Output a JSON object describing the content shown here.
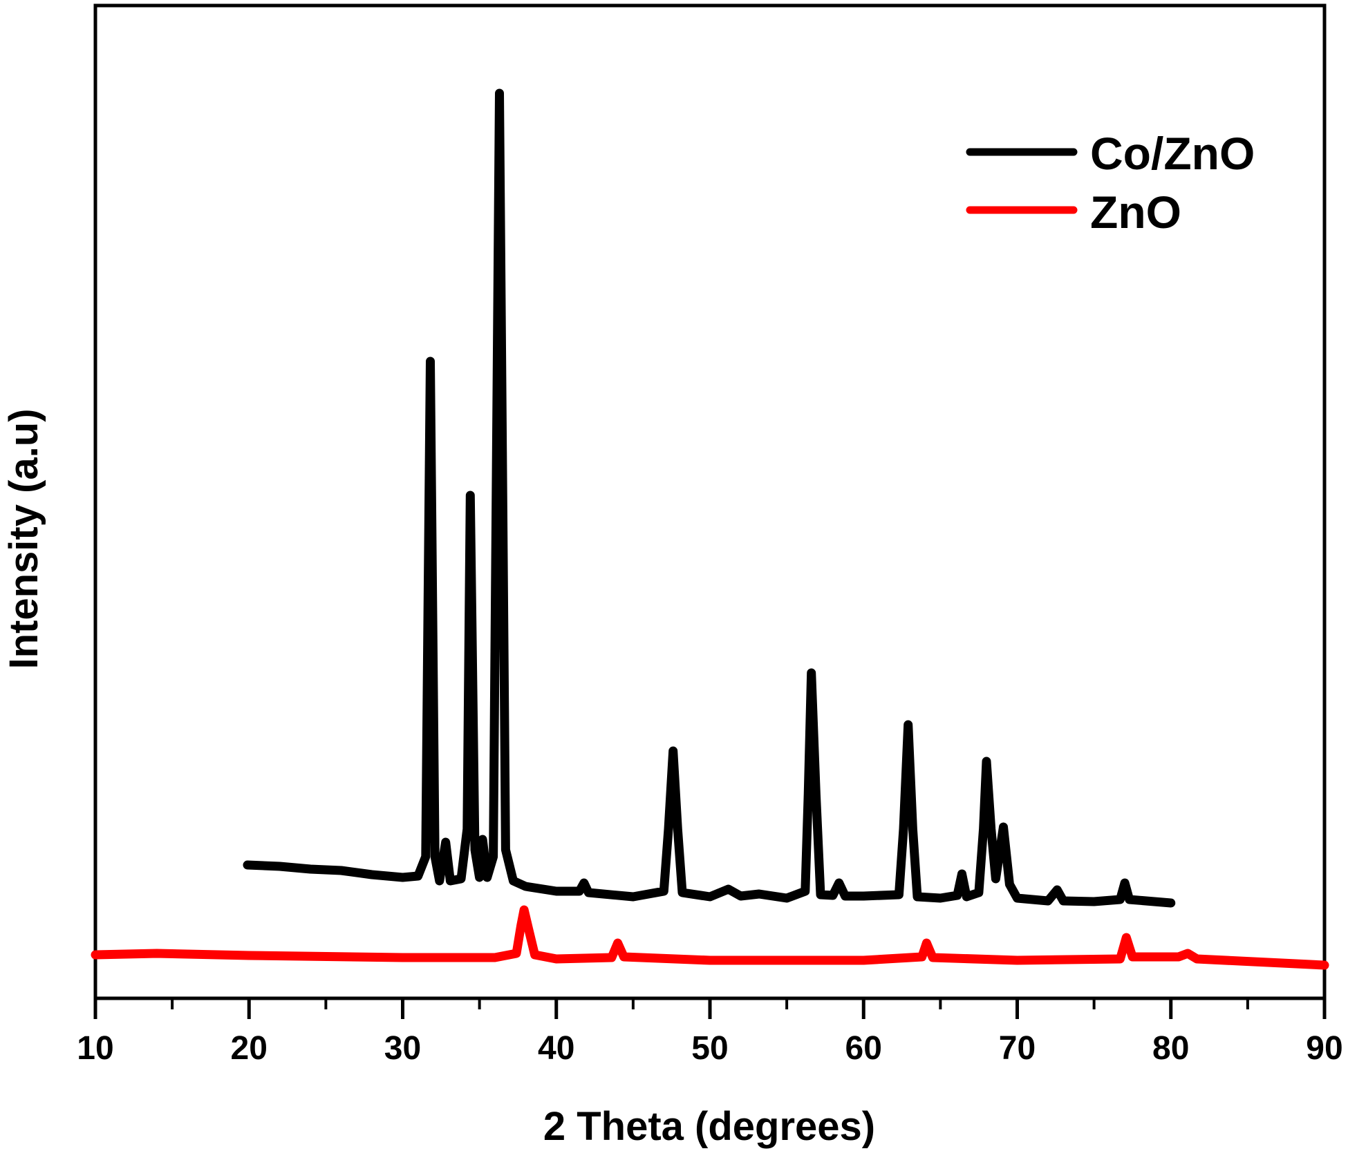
{
  "chart_data": {
    "type": "line",
    "title": "",
    "xlabel": "2 Theta (degrees)",
    "ylabel": "Intensity (a.u)",
    "xlim": [
      10,
      90
    ],
    "ylim": [
      0,
      1437
    ],
    "x_ticks_major": [
      10,
      20,
      30,
      40,
      50,
      60,
      70,
      80,
      90
    ],
    "x_ticks_minor": [
      15,
      25,
      35,
      45,
      55,
      65,
      75,
      85
    ],
    "y_ticks": [],
    "grid": false,
    "legend_position": "upper right",
    "series": [
      {
        "name": "Co/ZnO",
        "color": "#000000",
        "x": [
          19.9,
          22,
          24,
          26,
          28,
          30,
          31.0,
          31.5,
          31.8,
          32.1,
          32.4,
          32.8,
          33.1,
          33.8,
          34.2,
          34.4,
          34.7,
          35.0,
          35.2,
          35.5,
          35.9,
          36.3,
          36.7,
          37.2,
          38,
          40,
          41.5,
          41.8,
          42.1,
          45,
          47.0,
          47.3,
          47.6,
          47.9,
          48.2,
          50,
          51.2,
          52,
          53.2,
          55,
          56.2,
          56.4,
          56.6,
          56.9,
          57.2,
          58,
          58.4,
          58.8,
          60,
          62.3,
          62.6,
          62.9,
          63.2,
          63.5,
          65,
          66.1,
          66.4,
          66.7,
          67.5,
          67.8,
          68.0,
          68.3,
          68.6,
          69.1,
          69.5,
          70,
          72,
          72.6,
          73,
          75,
          76.7,
          77.0,
          77.3,
          80
        ],
        "values": [
          193,
          191,
          187,
          185,
          179,
          175,
          177,
          205,
          922,
          205,
          170,
          226,
          170,
          173,
          245,
          728,
          215,
          175,
          230,
          175,
          205,
          1310,
          215,
          170,
          162,
          155,
          155,
          167,
          153,
          147,
          155,
          245,
          358,
          245,
          153,
          147,
          158,
          148,
          151,
          145,
          155,
          295,
          471,
          295,
          150,
          149,
          167,
          148,
          148,
          150,
          245,
          396,
          245,
          147,
          145,
          149,
          180,
          147,
          153,
          245,
          343,
          245,
          173,
          248,
          165,
          145,
          141,
          157,
          141,
          140,
          143,
          167,
          143,
          138
        ]
      },
      {
        "name": "ZnO",
        "color": "#ff0000",
        "x": [
          10,
          14,
          20,
          30,
          36,
          37.4,
          37.7,
          37.9,
          38.2,
          38.6,
          40,
          43.6,
          44.0,
          44.4,
          50,
          60,
          63.8,
          64.1,
          64.5,
          70,
          76.7,
          77.1,
          77.5,
          80.5,
          81.1,
          81.7,
          90
        ],
        "values": [
          63,
          65,
          62,
          59,
          59,
          65,
          105,
          128,
          100,
          63,
          57,
          59,
          80,
          60,
          55,
          55,
          60,
          80,
          59,
          55,
          57,
          88,
          60,
          60,
          65,
          57,
          48
        ]
      }
    ],
    "peaks_Co_ZnO": [
      31.8,
      34.4,
      36.3,
      47.6,
      56.6,
      62.9,
      66.4,
      68.0,
      69.1,
      72.6,
      77.0
    ],
    "peaks_ZnO": [
      37.9,
      44.0,
      64.1,
      77.1,
      81.1
    ]
  },
  "axis": {
    "x_title": "2 Theta (degrees)",
    "y_title": "Intensity (a.u)",
    "x_tick_labels": [
      "10",
      "20",
      "30",
      "40",
      "50",
      "60",
      "70",
      "80",
      "90"
    ]
  },
  "legend": {
    "items": [
      {
        "label": "Co/ZnO",
        "color": "#000000"
      },
      {
        "label": "ZnO",
        "color": "#ff0000"
      }
    ]
  }
}
